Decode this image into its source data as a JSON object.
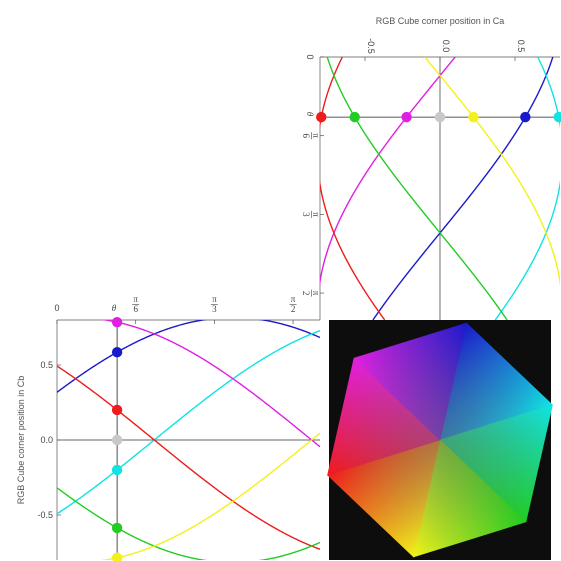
{
  "chart_data": [
    {
      "type": "line",
      "title": "",
      "xlabel": "",
      "ylabel": "RGB Cube corner position in Cb",
      "theta_label": "θ",
      "x_tick_labels": [
        "0",
        "π/6",
        "π/3",
        "π/2"
      ],
      "y_tick_labels": [
        "-0.5",
        "0.0",
        "0.5"
      ],
      "xlim": [
        0,
        1.75
      ],
      "ylim": [
        -0.8,
        0.8
      ],
      "marker_theta": 0.4,
      "colors": {
        "red": "#ee1c1c",
        "green": "#22cc22",
        "blue": "#1a1acc",
        "cyan": "#11e2e2",
        "magenta": "#e020e0",
        "yellow": "#f2f21a",
        "gray": "#c8c8c8"
      },
      "series": [
        {
          "name": "",
          "color": "blue",
          "amplitude": 0.8165,
          "phase": 0.4
        },
        {
          "name": "",
          "color": "cyan",
          "amplitude": 0.8165,
          "phase": -0.647
        },
        {
          "name": "",
          "color": "magenta",
          "amplitude": 0.8165,
          "phase": 1.447
        },
        {
          "name": "",
          "color": "red",
          "amplitude": 0.8165,
          "phase": 2.494
        },
        {
          "name": "",
          "color": "green",
          "amplitude": 0.8165,
          "phase": -2.741
        },
        {
          "name": "",
          "color": "yellow",
          "amplitude": 0.8165,
          "phase": -1.694
        },
        {
          "name": "",
          "color": "gray",
          "amplitude": 0.0,
          "phase": 0.0
        }
      ]
    },
    {
      "type": "line",
      "title": "RGB Cube corner position in Ca",
      "xlabel": "",
      "ylabel": "",
      "theta_label": "θ",
      "x_tick_labels": [
        "-0.5",
        "0.0",
        "0.5"
      ],
      "y_tick_labels": [
        "0",
        "π/6",
        "π/3",
        "π/2"
      ],
      "xlim": [
        -0.8,
        0.8
      ],
      "ylim": [
        0,
        1.75
      ],
      "marker_theta": 0.4,
      "series": [
        {
          "name": "",
          "color": "blue",
          "amplitude": 0.8165,
          "phase": 0.4
        },
        {
          "name": "",
          "color": "cyan",
          "amplitude": 0.8165,
          "phase": -0.647
        },
        {
          "name": "",
          "color": "magenta",
          "amplitude": 0.8165,
          "phase": 1.447
        },
        {
          "name": "",
          "color": "red",
          "amplitude": 0.8165,
          "phase": 2.494
        },
        {
          "name": "",
          "color": "green",
          "amplitude": 0.8165,
          "phase": -2.741
        },
        {
          "name": "",
          "color": "yellow",
          "amplitude": 0.8165,
          "phase": -1.694
        },
        {
          "name": "",
          "color": "gray",
          "amplitude": 0.0,
          "phase": 0.0
        }
      ]
    }
  ],
  "hexagon": {
    "background": "#0d0d0d",
    "corner_colors": [
      "#1a1acc",
      "#11e2e2",
      "#22cc22",
      "#f2f21a",
      "#ee1c1c",
      "#e020e0"
    ]
  }
}
